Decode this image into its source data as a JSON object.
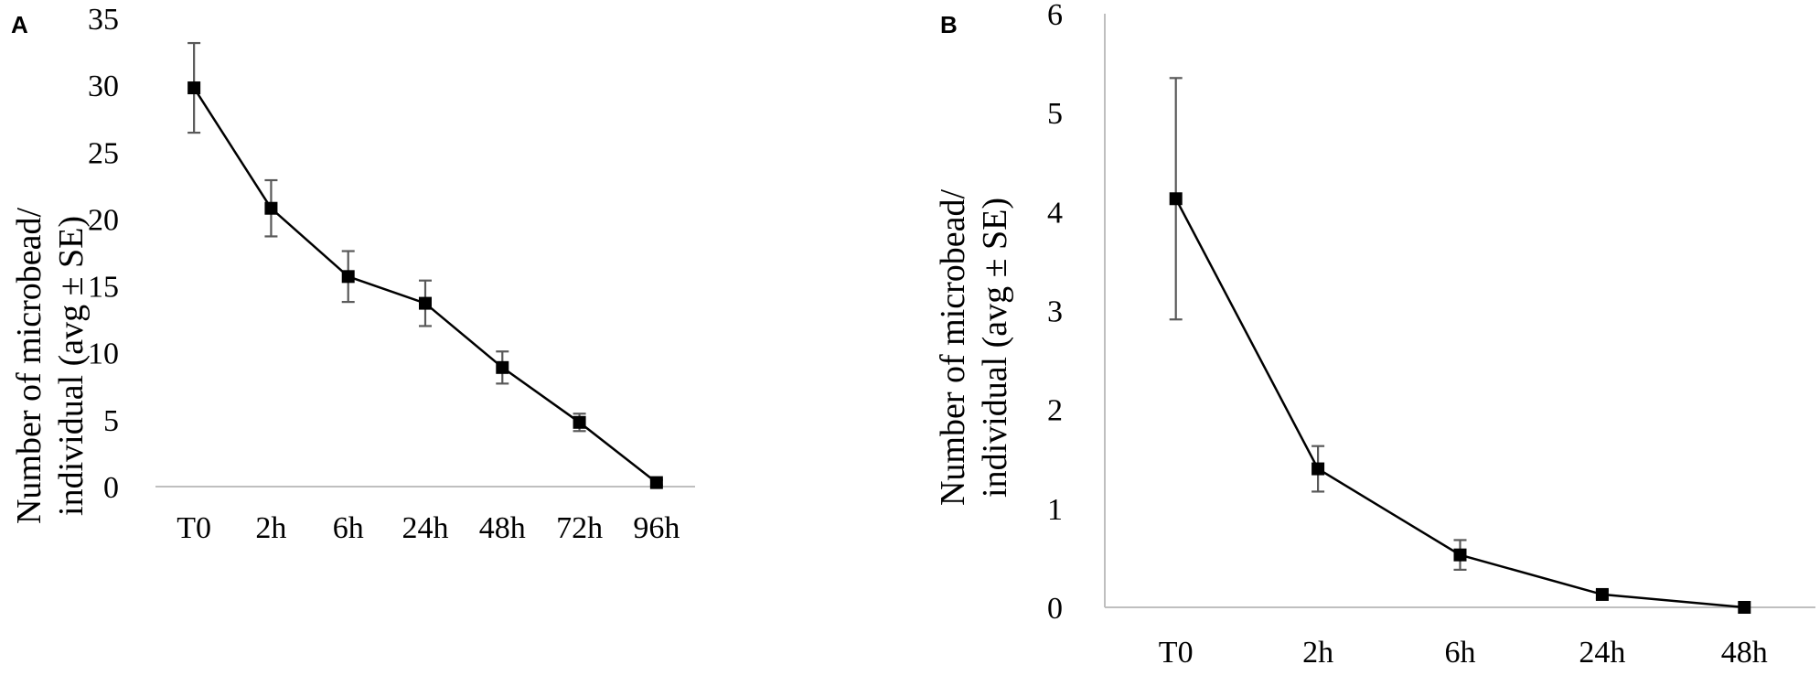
{
  "chart_data": [
    {
      "type": "line",
      "panel_label": "A",
      "ylabel_line1": "Number of microbead/",
      "ylabel_line2": "individual (avg ± SE)",
      "xlabel": "",
      "categories": [
        "T0",
        "2h",
        "6h",
        "24h",
        "48h",
        "72h",
        "96h"
      ],
      "values": [
        29.8,
        20.8,
        15.7,
        13.7,
        8.9,
        4.8,
        0.3
      ],
      "errors": [
        3.35,
        2.1,
        1.9,
        1.7,
        1.2,
        0.65,
        0.2
      ],
      "ylim": [
        0,
        35
      ],
      "yticks": [
        "0",
        "5",
        "10",
        "15",
        "20",
        "25",
        "30",
        "35"
      ],
      "grid": false,
      "colors": {
        "line": "#000000",
        "marker": "#000000",
        "error_bar": "#595959",
        "axis": "#bfbfbf"
      }
    },
    {
      "type": "line",
      "panel_label": "B",
      "ylabel_line1": "Number of microbead/",
      "ylabel_line2": "individual (avg ± SE)",
      "xlabel": "",
      "categories": [
        "T0",
        "2h",
        "6h",
        "24h",
        "48h"
      ],
      "values": [
        4.13,
        1.4,
        0.53,
        0.13,
        0.0
      ],
      "errors": [
        1.22,
        0.23,
        0.15,
        0.04,
        0.0
      ],
      "ylim": [
        0,
        6
      ],
      "yticks": [
        "0",
        "1",
        "2",
        "3",
        "4",
        "5",
        "6"
      ],
      "grid": false,
      "colors": {
        "line": "#000000",
        "marker": "#000000",
        "error_bar": "#595959",
        "axis": "#bfbfbf"
      }
    }
  ]
}
